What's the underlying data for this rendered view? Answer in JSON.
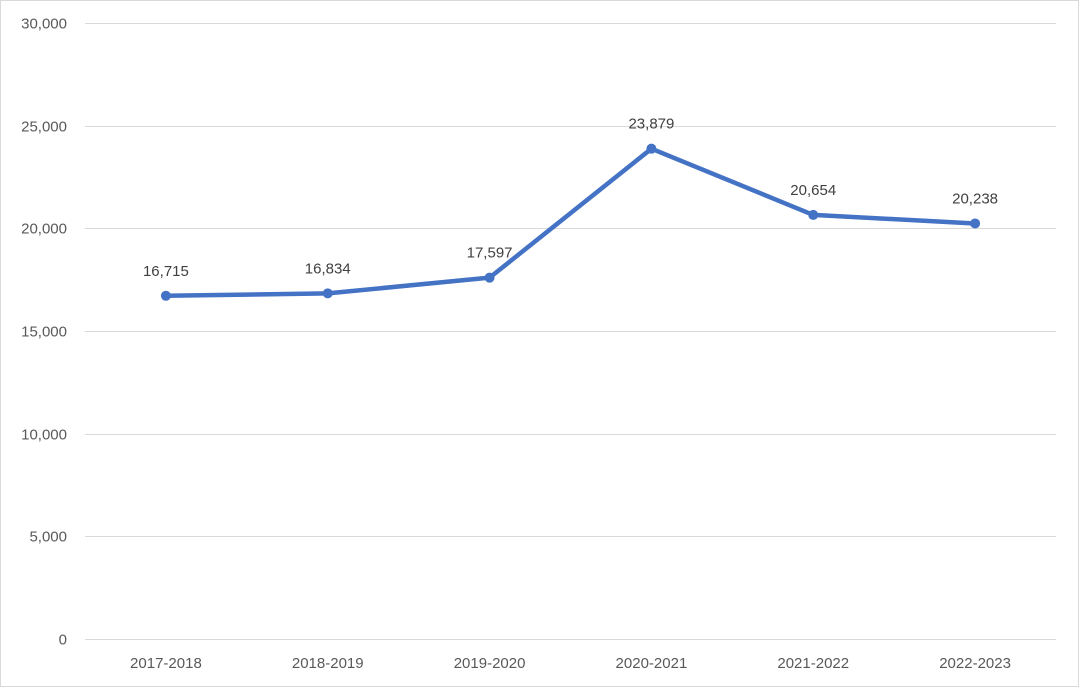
{
  "chart_data": {
    "type": "line",
    "categories": [
      "2017-2018",
      "2018-2019",
      "2019-2020",
      "2020-2021",
      "2021-2022",
      "2022-2023"
    ],
    "series": [
      {
        "values": [
          16715,
          16834,
          17597,
          23879,
          20654,
          20238
        ],
        "data_labels": [
          "16,715",
          "16,834",
          "17,597",
          "23,879",
          "20,654",
          "20,238"
        ],
        "color": "#4472C4"
      }
    ],
    "y_ticks": [
      0,
      5000,
      10000,
      15000,
      20000,
      25000,
      30000
    ],
    "y_tick_labels": [
      "0",
      "5,000",
      "10,000",
      "15,000",
      "20,000",
      "25,000",
      "30,000"
    ],
    "ylim": [
      0,
      30000
    ],
    "grid": true,
    "legend": "none",
    "gridline_color": "#d9d9d9",
    "markers": "circle"
  }
}
